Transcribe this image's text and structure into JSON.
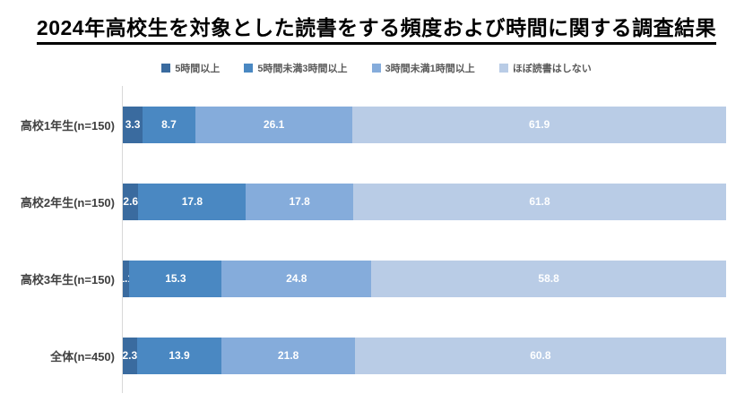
{
  "title": "2024年高校生を対象とした読書をする頻度および時間に関する調査結果",
  "colors": {
    "background": "#ffffff",
    "title_text": "#000000",
    "title_underline": "#000000",
    "axis_line": "#d9d9d9",
    "category_label": "#404040",
    "value_label": "#ffffff",
    "legend_text": "#595959"
  },
  "chart_data": {
    "type": "bar",
    "subtype": "horizontal-stacked-100",
    "unit": "%",
    "title": "2024年高校生を対象とした読書をする頻度および時間に関する調査結果",
    "legend_position": "top",
    "grid": false,
    "xlim": [
      0,
      100
    ],
    "value_labels": true,
    "categories": [
      "高校1年生(n=150)",
      "高校2年生(n=150)",
      "高校3年生(n=150)",
      "全体(n=450)"
    ],
    "series": [
      {
        "name": "5時間以上",
        "color": "#3a6b9f",
        "values": [
          3.3,
          2.6,
          1.1,
          2.3
        ]
      },
      {
        "name": "5時間未満3時間以上",
        "color": "#4a88c2",
        "values": [
          8.7,
          17.8,
          15.3,
          13.9
        ]
      },
      {
        "name": "3時間未満1時間以上",
        "color": "#85acdb",
        "values": [
          26.1,
          17.8,
          24.8,
          21.8
        ]
      },
      {
        "name": "ほぼ読書はしない",
        "color": "#b9cce6",
        "values": [
          61.9,
          61.8,
          58.8,
          60.8
        ]
      }
    ]
  }
}
